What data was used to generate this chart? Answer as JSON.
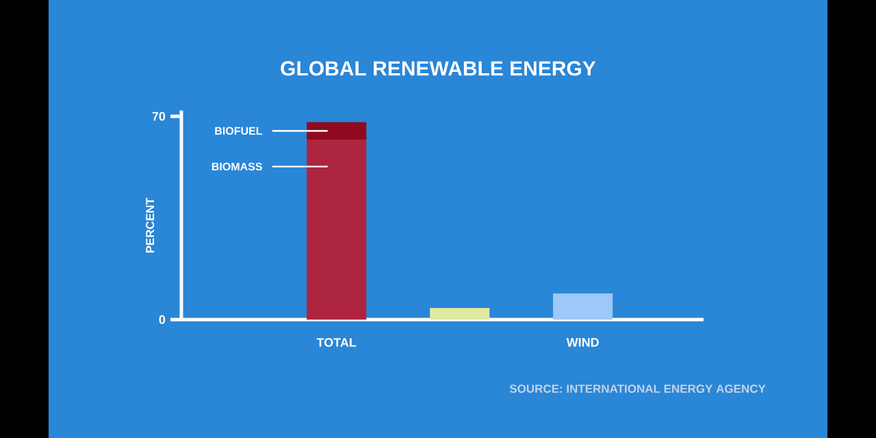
{
  "chart_data": {
    "type": "bar",
    "title": "GLOBAL RENEWABLE ENERGY",
    "ylabel": "PERCENT",
    "categories": [
      "TOTAL",
      null,
      "WIND"
    ],
    "stacked": true,
    "ylim": [
      0,
      72
    ],
    "yticks": [
      0,
      70
    ],
    "series": [
      {
        "name": "BIOMASS",
        "color": "#ae2540",
        "values": [
          62,
          null,
          null
        ]
      },
      {
        "name": "BIOFUEL",
        "color": "#8f0a1e",
        "values": [
          6,
          null,
          null
        ]
      },
      {
        "colors": [
          "#ae2540",
          "#dfe9a0",
          "#9dc8f7"
        ],
        "values": [
          null,
          4,
          9
        ]
      }
    ],
    "annotations": [
      "SOURCE: INTERNATIONAL ENERGY AGENCY"
    ]
  }
}
